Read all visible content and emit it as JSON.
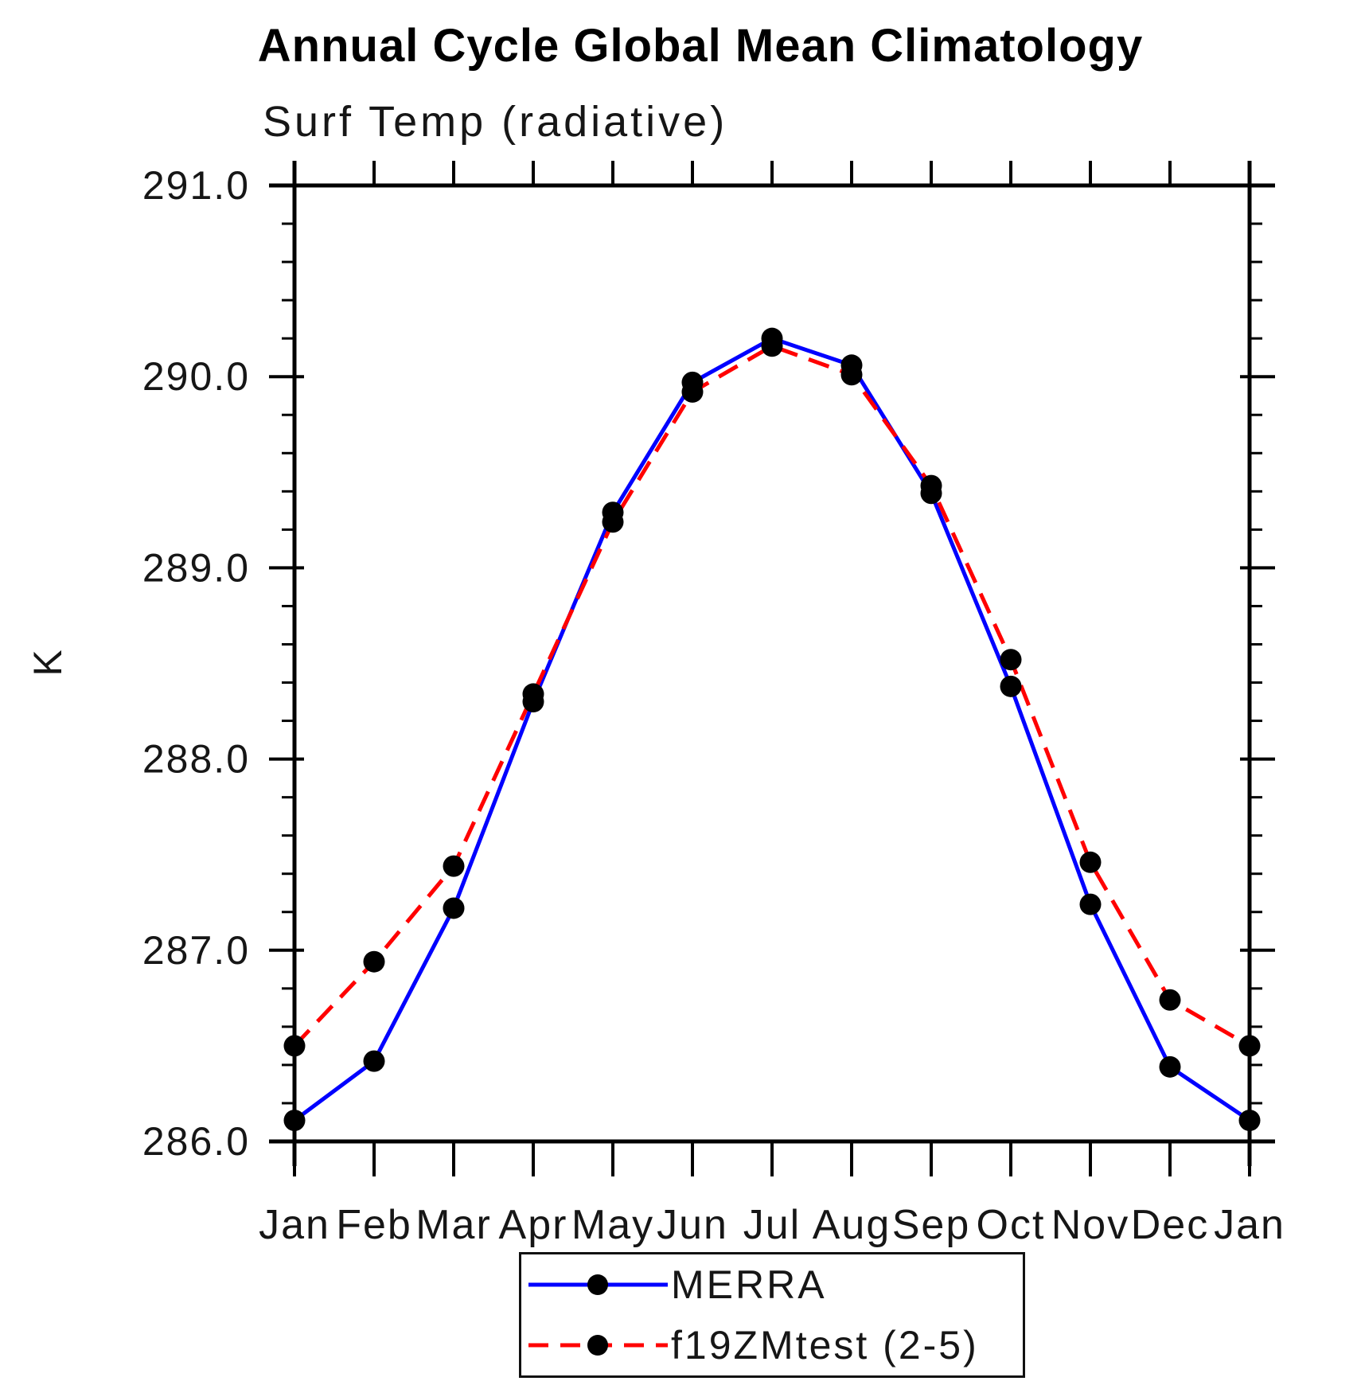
{
  "page": {
    "background": "#ffffff"
  },
  "chart_data": {
    "type": "line",
    "title": "Annual Cycle Global Mean Climatology",
    "subtitle": "Surf Temp (radiative)",
    "ylabel": "K",
    "xlabel": "",
    "categories": [
      "Jan",
      "Feb",
      "Mar",
      "Apr",
      "May",
      "Jun",
      "Jul",
      "Aug",
      "Sep",
      "Oct",
      "Nov",
      "Dec",
      "Jan"
    ],
    "ylim": [
      286.0,
      291.0
    ],
    "ytick_labels": [
      "286.0",
      "287.0",
      "288.0",
      "289.0",
      "290.0",
      "291.0"
    ],
    "ytick_values": [
      286.0,
      287.0,
      288.0,
      289.0,
      290.0,
      291.0
    ],
    "yminor_step": 0.2,
    "grid": false,
    "axis_color": "#000000",
    "legend_position": "bottom-center",
    "series": [
      {
        "name": "MERRA",
        "color": "#0000ff",
        "line_style": "solid",
        "marker": "filled-circle",
        "marker_color": "#000000",
        "values": [
          286.11,
          286.42,
          287.22,
          288.3,
          289.29,
          289.97,
          290.2,
          290.06,
          289.39,
          288.38,
          287.24,
          286.39,
          286.11
        ]
      },
      {
        "name": "f19ZMtest (2-5)",
        "color": "#ff0000",
        "line_style": "dashed",
        "marker": "filled-circle",
        "marker_color": "#000000",
        "values": [
          286.5,
          286.94,
          287.44,
          288.34,
          289.24,
          289.92,
          290.16,
          290.01,
          289.43,
          288.52,
          287.46,
          286.74,
          286.5
        ]
      }
    ]
  }
}
